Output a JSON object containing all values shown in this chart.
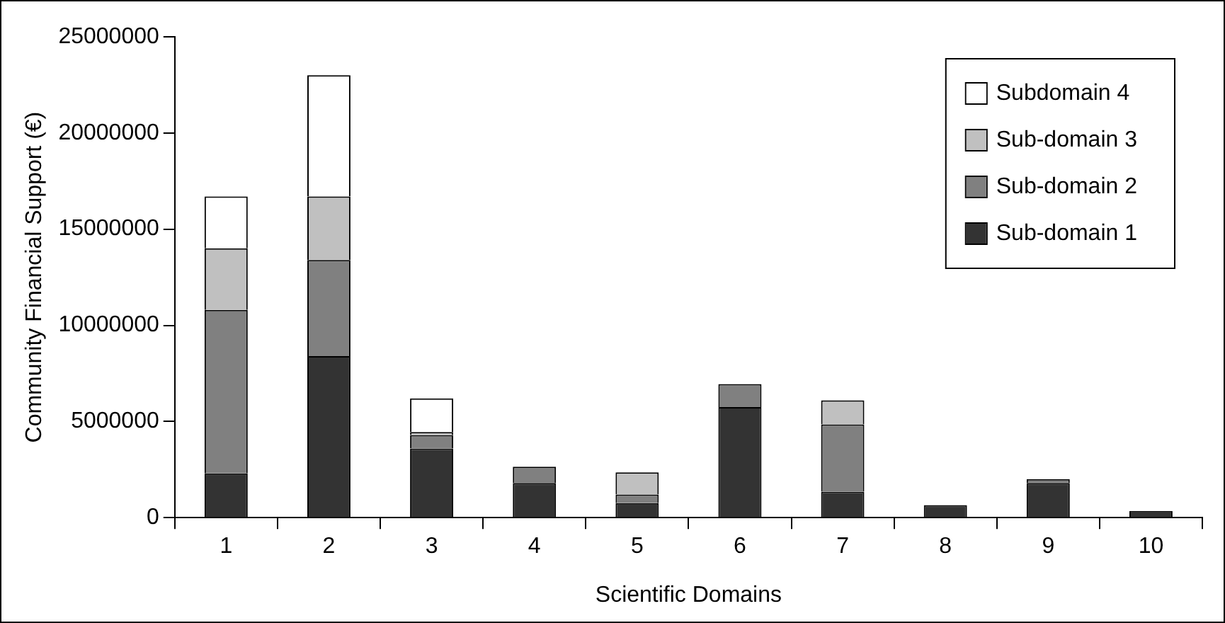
{
  "chart_data": {
    "type": "bar",
    "stacked": true,
    "xlabel": "Scientific Domains",
    "ylabel": "Community Financial Support (€)",
    "categories": [
      "1",
      "2",
      "3",
      "4",
      "5",
      "6",
      "7",
      "8",
      "9",
      "10"
    ],
    "series": [
      {
        "name": "Sub-domain 1",
        "color": "#333333",
        "values": [
          2300000,
          8400000,
          3600000,
          1800000,
          750000,
          5750000,
          1350000,
          650000,
          1800000,
          350000
        ]
      },
      {
        "name": "Sub-domain 2",
        "color": "#808080",
        "values": [
          8500000,
          5000000,
          700000,
          850000,
          450000,
          1200000,
          3500000,
          0,
          200000,
          0
        ]
      },
      {
        "name": "Sub-domain 3",
        "color": "#c0c0c0",
        "values": [
          3200000,
          3300000,
          150000,
          0,
          1150000,
          0,
          1250000,
          0,
          0,
          0
        ]
      },
      {
        "name": "Subdomain 4",
        "color": "#ffffff",
        "values": [
          2700000,
          6300000,
          1750000,
          0,
          0,
          0,
          0,
          0,
          0,
          0
        ]
      }
    ],
    "ylim": [
      0,
      25000000
    ],
    "yticks": [
      0,
      5000000,
      10000000,
      15000000,
      20000000,
      25000000
    ],
    "grid": false,
    "legend": "top right"
  }
}
